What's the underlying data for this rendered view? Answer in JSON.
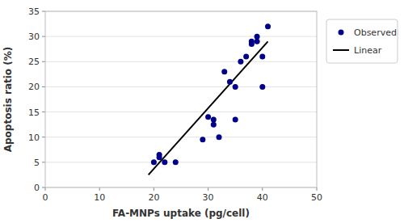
{
  "chart_data": {
    "type": "scatter",
    "xlabel": "FA-MNPs uptake (pg/cell)",
    "ylabel": "Apoptosis ratio (%)",
    "series": [
      {
        "name": "Observed",
        "type": "scatter",
        "color": "#00008B",
        "marker": "circle",
        "x": [
          20,
          21,
          21,
          22,
          24,
          29,
          30,
          31,
          31,
          32,
          33,
          34,
          35,
          35,
          36,
          37,
          38,
          38,
          39,
          39,
          40,
          40,
          41
        ],
        "values": [
          5,
          6.5,
          6,
          5,
          5,
          9.5,
          14,
          12.5,
          13.5,
          10,
          23,
          21,
          20,
          13.5,
          25,
          26,
          28.5,
          29,
          29,
          30,
          26,
          20,
          32
        ]
      },
      {
        "name": "Linear",
        "type": "line",
        "color": "#000000",
        "line_style": "solid",
        "x": [
          19,
          41
        ],
        "values": [
          2.5,
          29.0
        ]
      }
    ],
    "xlim": [
      0,
      50
    ],
    "ylim": [
      0,
      35
    ],
    "xticks": [
      0,
      10,
      20,
      30,
      40,
      50
    ],
    "yticks": [
      0,
      5,
      10,
      15,
      20,
      25,
      30,
      35
    ],
    "grid": "y",
    "legend": "right"
  }
}
